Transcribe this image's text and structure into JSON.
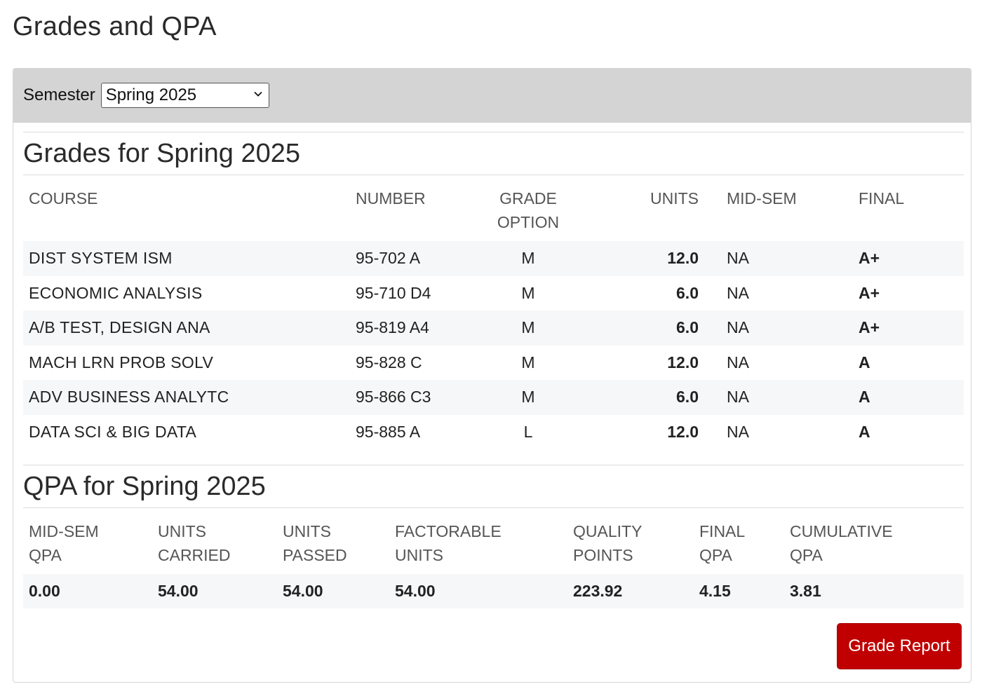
{
  "page_title": "Grades and QPA",
  "semester_select": {
    "label": "Semester",
    "selected": "Spring 2025"
  },
  "grades_section": {
    "title": "Grades for Spring 2025",
    "headers": {
      "course": "COURSE",
      "number": "NUMBER",
      "grade_option_line1": "GRADE",
      "grade_option_line2": "OPTION",
      "units": "UNITS",
      "mid_sem": "MID-SEM",
      "final": "FINAL"
    },
    "rows": [
      {
        "course": "DIST SYSTEM ISM",
        "number": "95-702 A",
        "grade_option": "M",
        "units": "12.0",
        "mid_sem": "NA",
        "final": "A+"
      },
      {
        "course": "ECONOMIC ANALYSIS",
        "number": "95-710 D4",
        "grade_option": "M",
        "units": "6.0",
        "mid_sem": "NA",
        "final": "A+"
      },
      {
        "course": "A/B TEST, DESIGN ANA",
        "number": "95-819 A4",
        "grade_option": "M",
        "units": "6.0",
        "mid_sem": "NA",
        "final": "A+"
      },
      {
        "course": "MACH LRN PROB SOLV",
        "number": "95-828 C",
        "grade_option": "M",
        "units": "12.0",
        "mid_sem": "NA",
        "final": "A"
      },
      {
        "course": "ADV BUSINESS ANALYTC",
        "number": "95-866 C3",
        "grade_option": "M",
        "units": "6.0",
        "mid_sem": "NA",
        "final": "A"
      },
      {
        "course": "DATA SCI & BIG DATA",
        "number": "95-885 A",
        "grade_option": "L",
        "units": "12.0",
        "mid_sem": "NA",
        "final": "A"
      }
    ]
  },
  "qpa_section": {
    "title": "QPA for Spring 2025",
    "headers": {
      "mid_sem_qpa_line1": "MID-SEM",
      "mid_sem_qpa_line2": "QPA",
      "units_carried_line1": "UNITS",
      "units_carried_line2": "CARRIED",
      "units_passed_line1": "UNITS",
      "units_passed_line2": "PASSED",
      "factorable_units_line1": "FACTORABLE",
      "factorable_units_line2": "UNITS",
      "quality_points_line1": "QUALITY",
      "quality_points_line2": "POINTS",
      "final_qpa_line1": "FINAL",
      "final_qpa_line2": "QPA",
      "cumulative_qpa_line1": "CUMULATIVE",
      "cumulative_qpa_line2": "QPA"
    },
    "values": {
      "mid_sem_qpa": "0.00",
      "units_carried": "54.00",
      "units_passed": "54.00",
      "factorable_units": "54.00",
      "quality_points": "223.92",
      "final_qpa": "4.15",
      "cumulative_qpa": "3.81"
    }
  },
  "grade_report_button": "Grade Report",
  "colors": {
    "header_band": "#d4d4d4",
    "stripe": "#f6f7f8",
    "button": "#c00000",
    "button_text": "#ffffff"
  }
}
